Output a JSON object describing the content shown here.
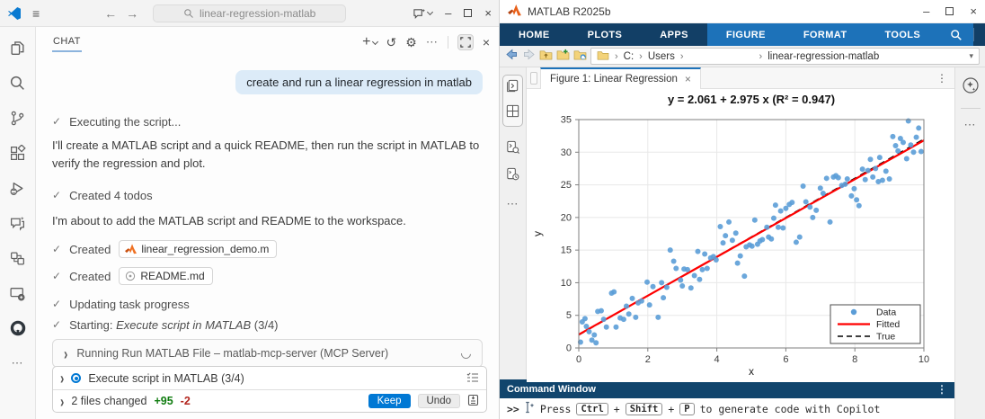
{
  "colors": {
    "accent": "#0078d4",
    "matlab_navy": "#123f66",
    "matlab_context_blue": "#1d72b9",
    "scatter_blue": "#5b9dd7",
    "fitted_red": "#ff0000",
    "true_black": "#000000",
    "additions_green": "#107c10",
    "deletions_red": "#b3261e"
  },
  "vscode": {
    "titlebar": {
      "search_text": "linear-regression-matlab"
    },
    "chat": {
      "tab": "CHAT",
      "user_message": "create and run a linear regression in matlab",
      "executing": "Executing the script...",
      "intro": "I'll create a MATLAB script and a quick README, then run the script in MATLAB to verify the regression and plot.",
      "created_todos": "Created 4 todos",
      "about_to_add": "I'm about to add the MATLAB script and README to the workspace.",
      "created_label_1": "Created",
      "created_label_2": "Created",
      "file_chip_1": "linear_regression_demo.m",
      "file_chip_2": "README.md",
      "updating": "Updating task progress",
      "starting_prefix": "Starting:",
      "starting_task": "Execute script in MATLAB",
      "starting_count": "(3/4)",
      "running_tool": "Running Run MATLAB File – matlab-mcp-server (MCP Server)",
      "todo_header": "Execute script in MATLAB (3/4)",
      "files_changed": "2 files changed",
      "additions": "+95",
      "deletions": "-2",
      "keep_button": "Keep",
      "undo_button": "Undo"
    }
  },
  "matlab": {
    "window_title": "MATLAB R2025b",
    "toolstrip": {
      "main_tabs": [
        "HOME",
        "PLOTS",
        "APPS"
      ],
      "context_tabs": [
        "FIGURE",
        "FORMAT",
        "TOOLS"
      ]
    },
    "breadcrumb": {
      "segments": [
        "C:",
        "Users",
        "",
        "linear-regression-matlab"
      ]
    },
    "figure_tab": "Figure 1: Linear Regression",
    "command_window": {
      "title": "Command Window",
      "prompt": ">>",
      "hint_press": "Press",
      "key_1": "Ctrl",
      "key_2": "Shift",
      "key_3": "P",
      "plus_1": "+",
      "plus_2": "+",
      "hint_rest": "to generate code with Copilot"
    }
  },
  "chart_data": {
    "type": "scatter",
    "title": "y = 2.061 + 2.975 x    (R² = 0.947)",
    "xlabel": "x",
    "ylabel": "y",
    "xlim": [
      0,
      10
    ],
    "ylim": [
      0,
      35
    ],
    "xticks": [
      0,
      2,
      4,
      6,
      8,
      10
    ],
    "yticks": [
      0,
      5,
      10,
      15,
      20,
      25,
      30,
      35
    ],
    "grid": true,
    "legend": {
      "position": "lower right",
      "entries": [
        "Data",
        "Fitted",
        "True"
      ]
    },
    "series": [
      {
        "name": "Data",
        "kind": "scatter",
        "color": "#5b9dd7",
        "points": [
          [
            0.05,
            0.9
          ],
          [
            0.1,
            4.0
          ],
          [
            0.18,
            4.5
          ],
          [
            0.22,
            3.3
          ],
          [
            0.3,
            2.5
          ],
          [
            0.38,
            1.2
          ],
          [
            0.45,
            2.0
          ],
          [
            0.5,
            0.8
          ],
          [
            0.55,
            5.6
          ],
          [
            0.65,
            5.7
          ],
          [
            0.72,
            4.4
          ],
          [
            0.8,
            3.2
          ],
          [
            0.95,
            8.4
          ],
          [
            1.02,
            8.6
          ],
          [
            1.08,
            3.2
          ],
          [
            1.2,
            4.6
          ],
          [
            1.3,
            4.4
          ],
          [
            1.38,
            6.4
          ],
          [
            1.45,
            5.2
          ],
          [
            1.55,
            7.6
          ],
          [
            1.65,
            4.7
          ],
          [
            1.72,
            6.9
          ],
          [
            1.82,
            7.2
          ],
          [
            1.98,
            10.1
          ],
          [
            2.05,
            6.6
          ],
          [
            2.15,
            9.4
          ],
          [
            2.3,
            4.7
          ],
          [
            2.4,
            10.0
          ],
          [
            2.45,
            7.7
          ],
          [
            2.55,
            9.3
          ],
          [
            2.65,
            15.0
          ],
          [
            2.75,
            13.3
          ],
          [
            2.82,
            12.2
          ],
          [
            2.95,
            10.4
          ],
          [
            3.0,
            9.5
          ],
          [
            3.05,
            12.1
          ],
          [
            3.15,
            12.0
          ],
          [
            3.25,
            9.2
          ],
          [
            3.35,
            11.1
          ],
          [
            3.45,
            14.8
          ],
          [
            3.5,
            10.5
          ],
          [
            3.58,
            12.0
          ],
          [
            3.65,
            14.4
          ],
          [
            3.72,
            12.2
          ],
          [
            3.82,
            13.8
          ],
          [
            3.9,
            14.0
          ],
          [
            3.98,
            13.5
          ],
          [
            4.1,
            18.6
          ],
          [
            4.18,
            16.1
          ],
          [
            4.25,
            17.2
          ],
          [
            4.35,
            19.3
          ],
          [
            4.45,
            16.5
          ],
          [
            4.55,
            17.6
          ],
          [
            4.6,
            13.0
          ],
          [
            4.68,
            14.1
          ],
          [
            4.8,
            11.0
          ],
          [
            4.85,
            15.5
          ],
          [
            4.95,
            15.8
          ],
          [
            5.02,
            15.6
          ],
          [
            5.1,
            19.6
          ],
          [
            5.18,
            15.9
          ],
          [
            5.25,
            16.4
          ],
          [
            5.32,
            16.6
          ],
          [
            5.45,
            18.5
          ],
          [
            5.5,
            17.0
          ],
          [
            5.58,
            16.7
          ],
          [
            5.65,
            19.9
          ],
          [
            5.7,
            21.9
          ],
          [
            5.78,
            18.5
          ],
          [
            5.85,
            21.0
          ],
          [
            5.92,
            18.4
          ],
          [
            6.0,
            21.4
          ],
          [
            6.1,
            22.0
          ],
          [
            6.18,
            22.3
          ],
          [
            6.3,
            16.2
          ],
          [
            6.4,
            17.0
          ],
          [
            6.5,
            24.8
          ],
          [
            6.58,
            22.4
          ],
          [
            6.7,
            21.6
          ],
          [
            6.78,
            20.0
          ],
          [
            6.88,
            21.1
          ],
          [
            7.0,
            24.5
          ],
          [
            7.08,
            23.7
          ],
          [
            7.18,
            26.0
          ],
          [
            7.28,
            19.3
          ],
          [
            7.38,
            26.2
          ],
          [
            7.45,
            26.4
          ],
          [
            7.52,
            26.1
          ],
          [
            7.62,
            24.9
          ],
          [
            7.72,
            25.1
          ],
          [
            7.78,
            25.9
          ],
          [
            7.9,
            23.3
          ],
          [
            7.98,
            24.4
          ],
          [
            8.05,
            22.7
          ],
          [
            8.12,
            21.8
          ],
          [
            8.22,
            27.4
          ],
          [
            8.3,
            25.8
          ],
          [
            8.38,
            27.2
          ],
          [
            8.45,
            28.9
          ],
          [
            8.52,
            26.2
          ],
          [
            8.6,
            27.5
          ],
          [
            8.68,
            25.5
          ],
          [
            8.72,
            29.2
          ],
          [
            8.8,
            25.7
          ],
          [
            8.9,
            27.1
          ],
          [
            9.0,
            25.9
          ],
          [
            9.1,
            32.4
          ],
          [
            9.18,
            31.0
          ],
          [
            9.25,
            30.2
          ],
          [
            9.32,
            32.1
          ],
          [
            9.4,
            31.5
          ],
          [
            9.5,
            29.0
          ],
          [
            9.55,
            34.8
          ],
          [
            9.62,
            31.1
          ],
          [
            9.7,
            30.0
          ],
          [
            9.78,
            32.3
          ],
          [
            9.85,
            33.7
          ],
          [
            9.92,
            30.1
          ]
        ]
      },
      {
        "name": "Fitted",
        "kind": "line",
        "style": "solid",
        "color": "#ff0000",
        "points": [
          [
            0,
            2.061
          ],
          [
            10,
            31.811
          ]
        ]
      },
      {
        "name": "True",
        "kind": "line",
        "style": "dashed",
        "color": "#000000",
        "points": [
          [
            0,
            2.0
          ],
          [
            10,
            32.0
          ]
        ]
      }
    ]
  }
}
